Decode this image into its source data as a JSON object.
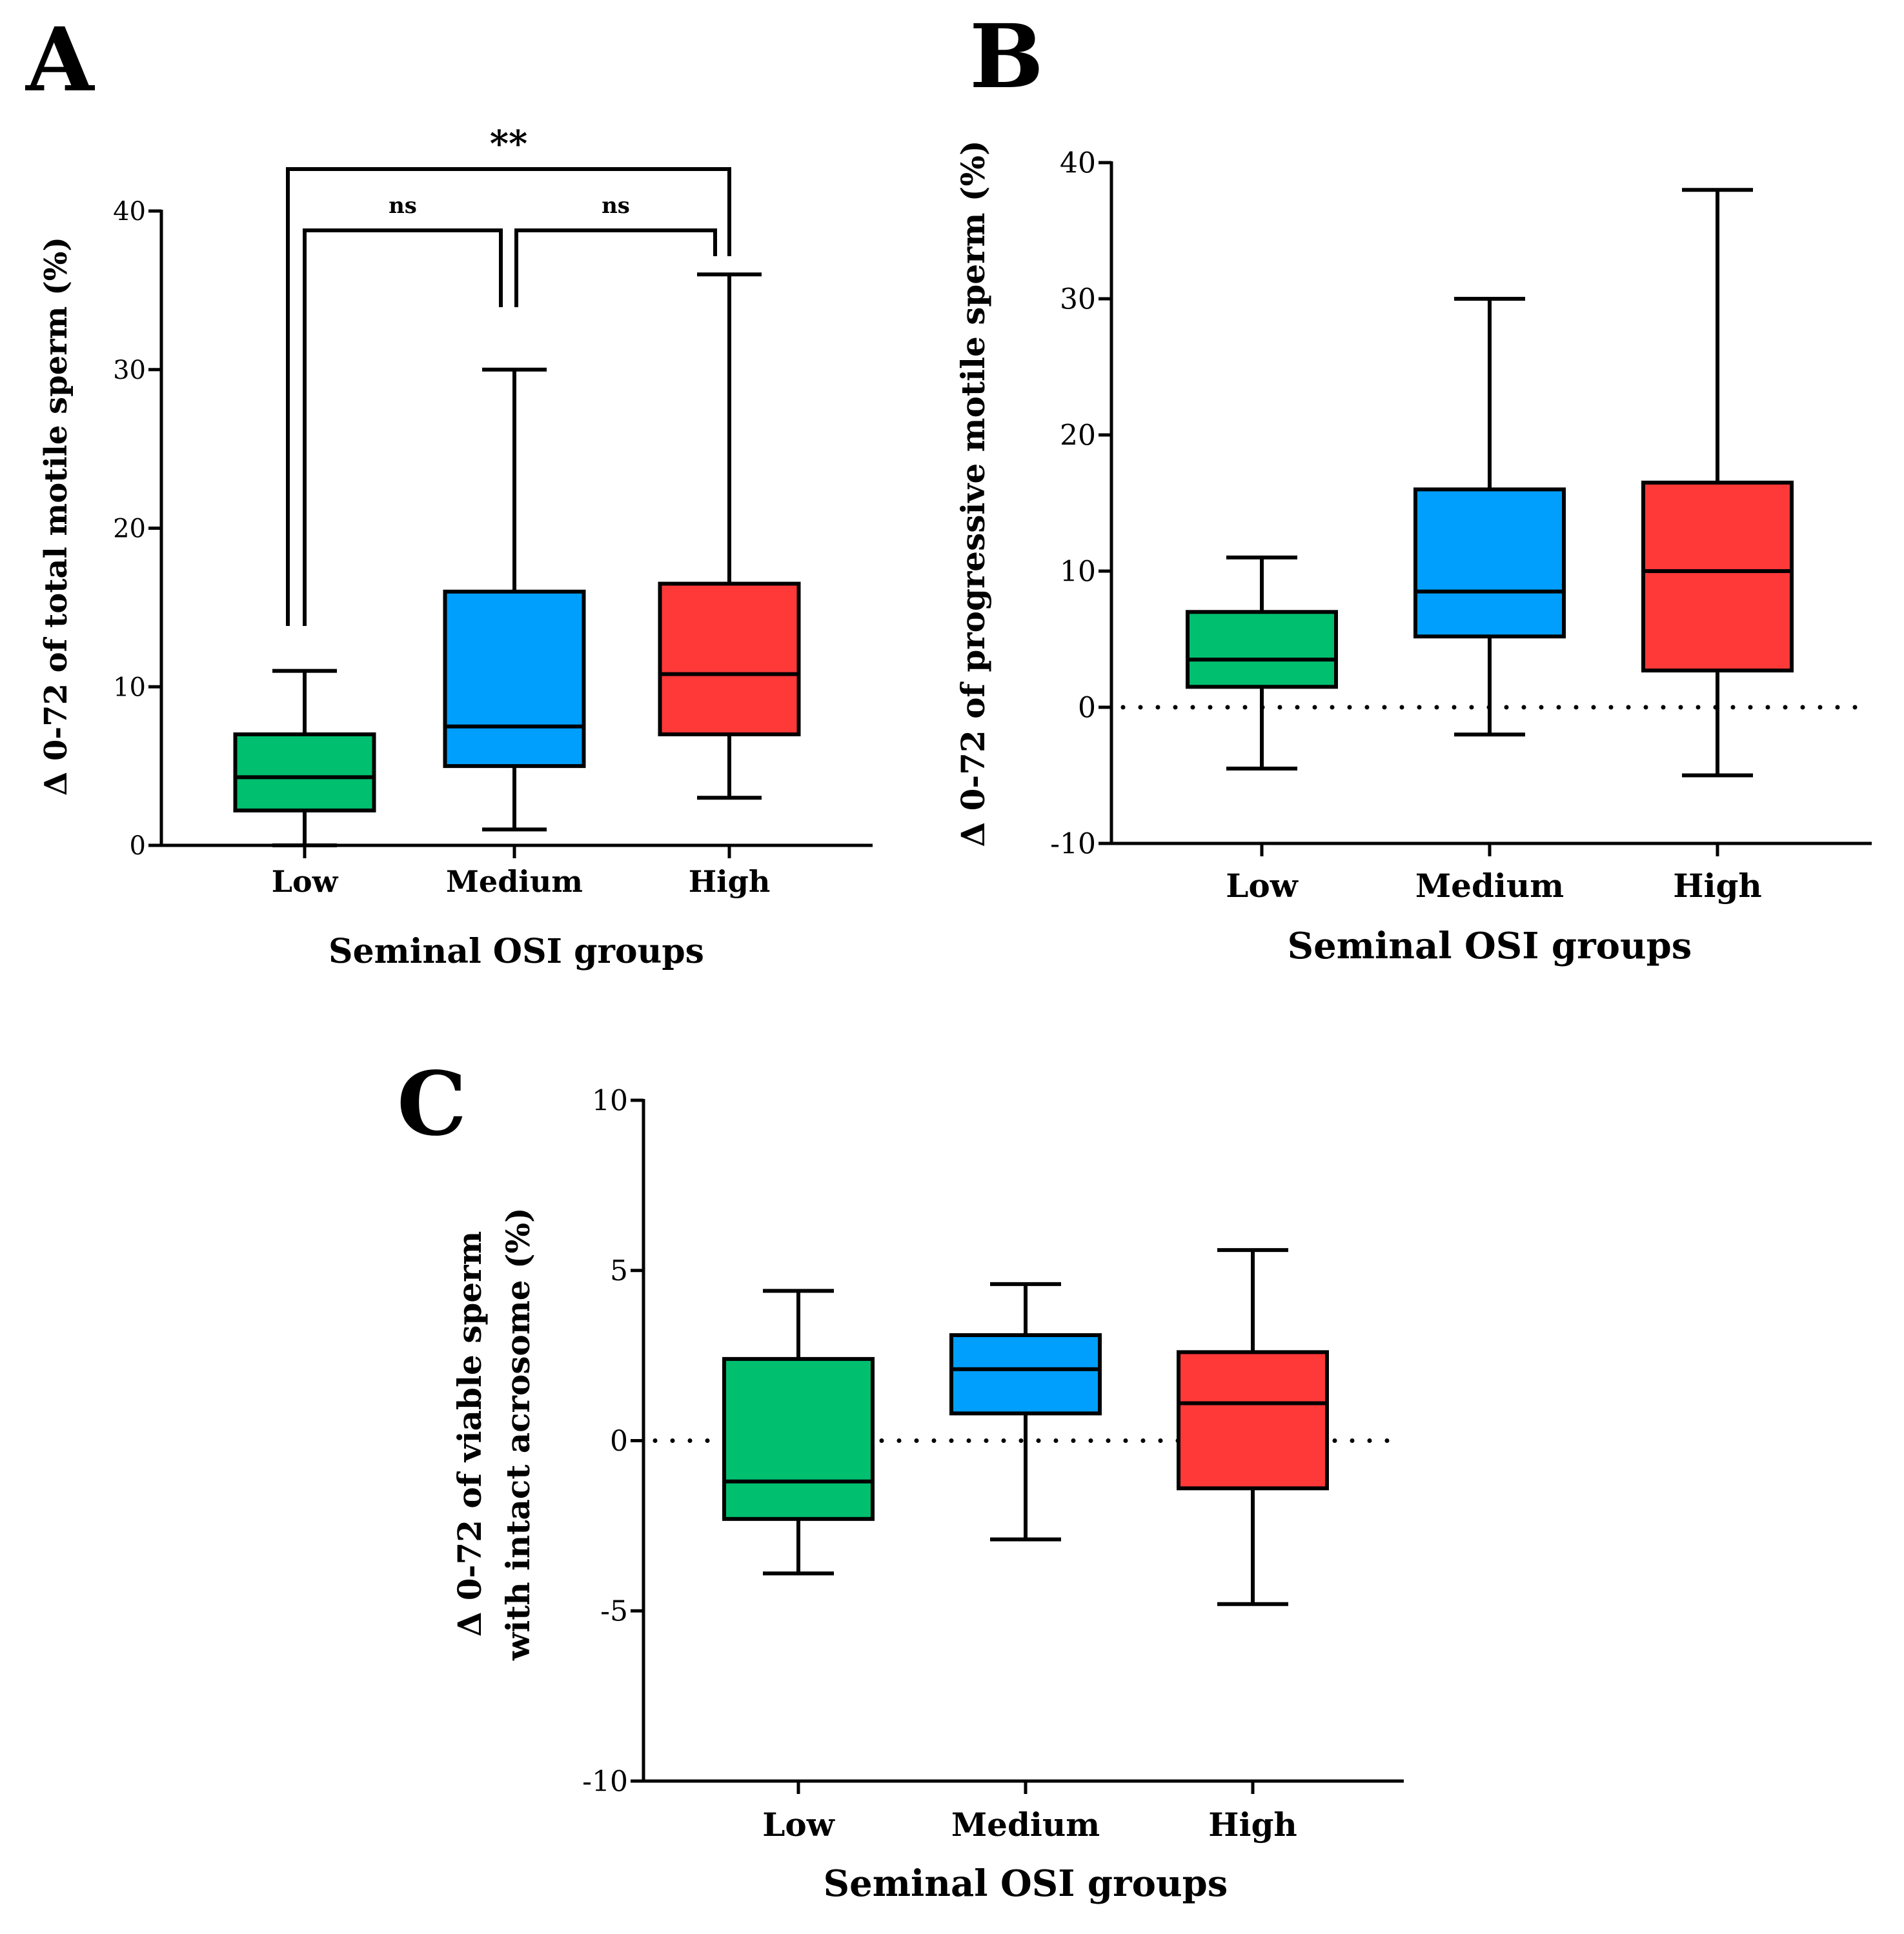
{
  "chart_data": [
    {
      "panel": "A",
      "type": "box",
      "xlabel": "Seminal OSI groups",
      "ylabel": "Δ 0-72 of total motile sperm (%)",
      "ylim": [
        0,
        40
      ],
      "yticks": [
        0,
        10,
        20,
        30,
        40
      ],
      "zero_line": false,
      "categories": [
        "Low",
        "Medium",
        "High"
      ],
      "series": [
        {
          "name": "Low",
          "color": "#00bf6f",
          "min": 0,
          "q1": 2.2,
          "median": 4.3,
          "q3": 7,
          "max": 11
        },
        {
          "name": "Medium",
          "color": "#009ffd",
          "min": 1,
          "q1": 5,
          "median": 7.5,
          "q3": 16,
          "max": 30
        },
        {
          "name": "High",
          "color": "#ff3838",
          "min": 3,
          "q1": 7,
          "median": 10.8,
          "q3": 16.5,
          "max": 36
        }
      ],
      "significance": [
        {
          "from": "Low",
          "to": "Medium",
          "label": "ns"
        },
        {
          "from": "Medium",
          "to": "High",
          "label": "ns"
        },
        {
          "from": "Low",
          "to": "High",
          "label": "**"
        }
      ]
    },
    {
      "panel": "B",
      "type": "box",
      "xlabel": "Seminal OSI groups",
      "ylabel": "Δ 0-72 of progressive motile sperm (%)",
      "ylim": [
        -10,
        40
      ],
      "yticks": [
        -10,
        0,
        10,
        20,
        30,
        40
      ],
      "zero_line": true,
      "categories": [
        "Low",
        "Medium",
        "High"
      ],
      "series": [
        {
          "name": "Low",
          "color": "#00bf6f",
          "min": -4.5,
          "q1": 1.5,
          "median": 3.5,
          "q3": 7,
          "max": 11
        },
        {
          "name": "Medium",
          "color": "#009ffd",
          "min": -2,
          "q1": 5.2,
          "median": 8.5,
          "q3": 16,
          "max": 30
        },
        {
          "name": "High",
          "color": "#ff3838",
          "min": -5,
          "q1": 2.7,
          "median": 10,
          "q3": 16.5,
          "max": 38
        }
      ],
      "significance": []
    },
    {
      "panel": "C",
      "type": "box",
      "xlabel": "Seminal OSI groups",
      "ylabel": [
        "Δ 0-72 of viable sperm",
        "with intact acrosome (%)"
      ],
      "ylim": [
        -10,
        10
      ],
      "yticks": [
        -10,
        -5,
        0,
        5,
        10
      ],
      "zero_line": true,
      "categories": [
        "Low",
        "Medium",
        "High"
      ],
      "series": [
        {
          "name": "Low",
          "color": "#00bf6f",
          "min": -3.9,
          "q1": -2.3,
          "median": -1.2,
          "q3": 2.4,
          "max": 4.4
        },
        {
          "name": "Medium",
          "color": "#009ffd",
          "min": -2.9,
          "q1": 0.8,
          "median": 2.1,
          "q3": 3.1,
          "max": 4.6
        },
        {
          "name": "High",
          "color": "#ff3838",
          "min": -4.8,
          "q1": -1.4,
          "median": 1.1,
          "q3": 2.6,
          "max": 5.6
        }
      ],
      "significance": []
    }
  ]
}
